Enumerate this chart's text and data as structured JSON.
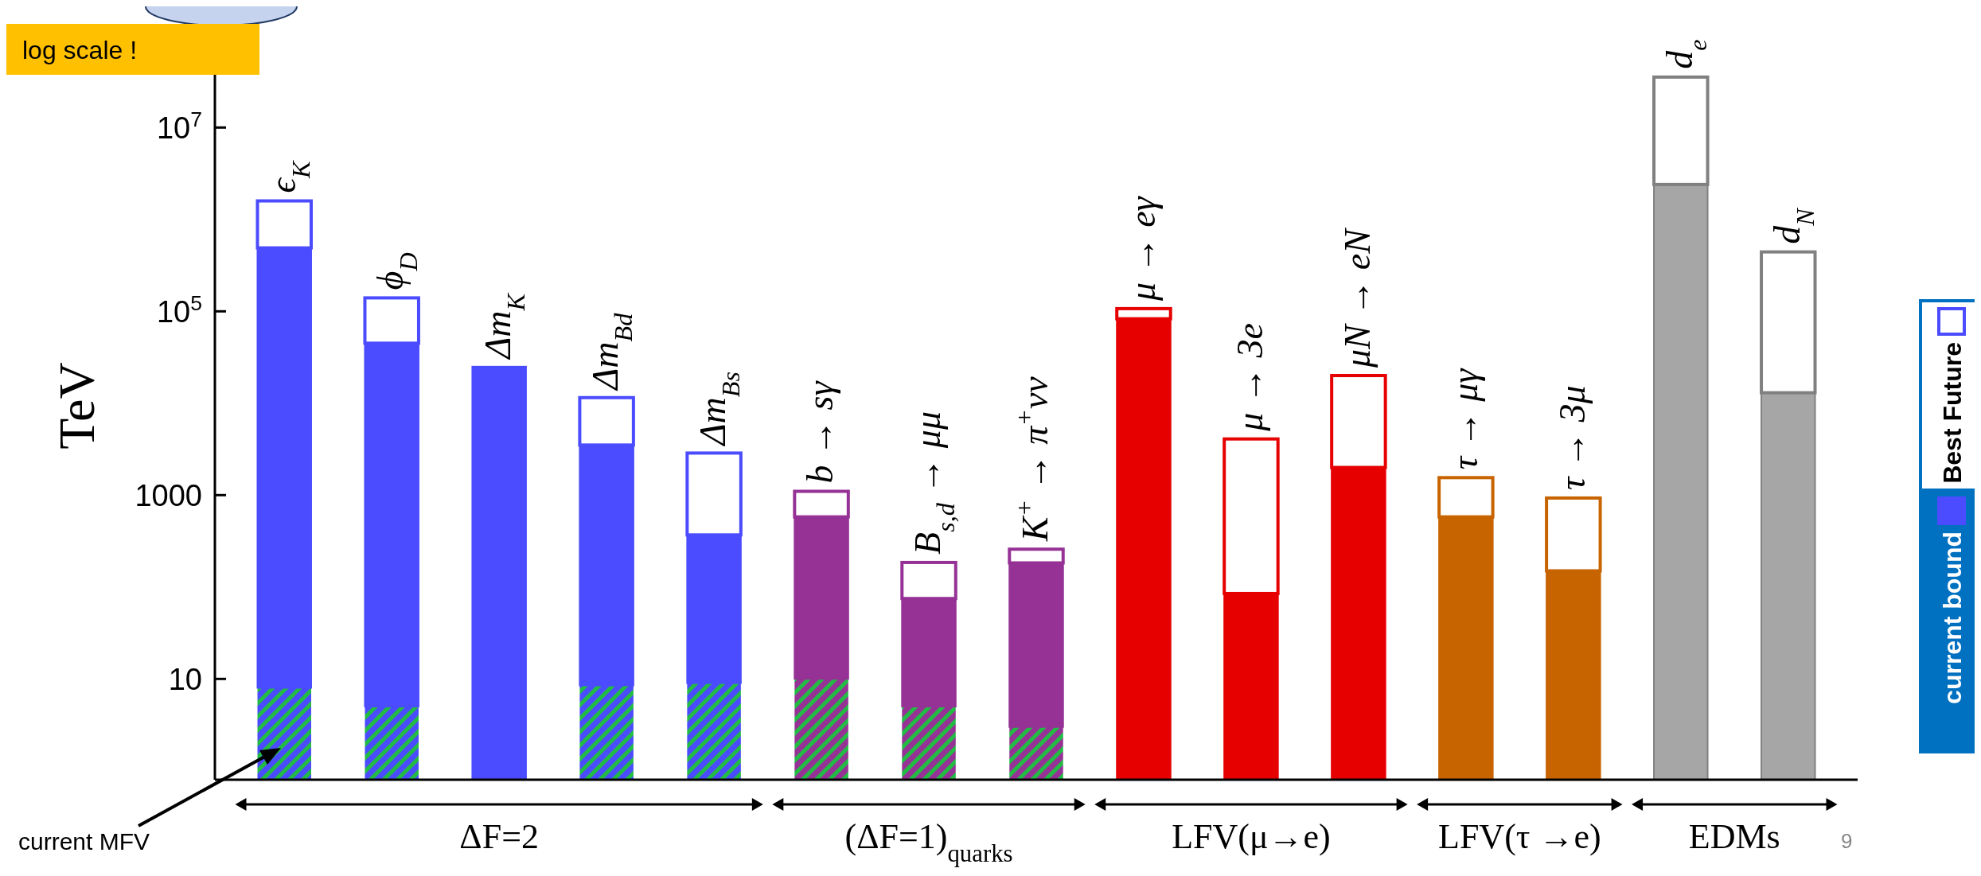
{
  "chart_data": {
    "type": "bar",
    "stacked": true,
    "log": true,
    "ylabel": "TeV",
    "categories": [
      "ϵ$_{K}$",
      "ϕ$_{D}$",
      "Δm$_{K}$",
      "Δm$_{Bd}$",
      "Δm$_{Bs}$",
      "b → sγ",
      "B$_{s,d}$ → μμ",
      "K$^{+}$ → π$^{+}$νν",
      "μ → eγ",
      "μ → 3e",
      "μN → eN",
      "τ → μγ",
      "τ → 3μ",
      "d$_{e}$",
      "d$_{N}$"
    ],
    "ylim": [
      0.8,
      110000000
    ],
    "yticks": [
      10,
      1000,
      {
        "value": 100000,
        "label": "10$^{5}$"
      },
      {
        "value": 10000000,
        "label": "10$^{7}$"
      }
    ],
    "series": [
      {
        "name": "current MFV",
        "color": "#22bb44",
        "colors": [
          "#4b4bff",
          "#4b4bff",
          "#4b4bff",
          "#4b4bff",
          "#4b4bff",
          "#963296",
          "#963296",
          "#963296",
          "#e60000",
          "#e60000",
          "#e60000",
          "#c86400",
          "#c86400",
          "#a6a6a6",
          "#a6a6a6"
        ],
        "values": [
          8,
          5,
          null,
          8.5,
          9,
          10,
          5,
          3,
          null,
          null,
          null,
          null,
          null,
          null,
          null
        ]
      },
      {
        "name": "current bound",
        "color": "#4b4bff",
        "colors": [
          "#4b4bff",
          "#4b4bff",
          "#4b4bff",
          "#4b4bff",
          "#4b4bff",
          "#963296",
          "#963296",
          "#963296",
          "#e60000",
          "#e60000",
          "#e60000",
          "#c86400",
          "#c86400",
          "#a6a6a6",
          "#a6a6a6"
        ],
        "values": [
          490000,
          45000,
          25000,
          3500,
          360,
          570,
          70,
          180,
          83000,
          85,
          2000,
          580,
          150,
          2400000,
          13000
        ]
      },
      {
        "name": "Best Future",
        "color": "#ffffff",
        "colors": [
          "#4b4bff",
          "#4b4bff",
          "#4b4bff",
          "#4b4bff",
          "#4b4bff",
          "#963296",
          "#963296",
          "#963296",
          "#e60000",
          "#e60000",
          "#e60000",
          "#c86400",
          "#c86400",
          "#808080",
          "#808080"
        ],
        "values": [
          1100000,
          95000,
          null,
          8000,
          2500,
          520,
          110,
          75,
          24000,
          4000,
          18000,
          970,
          780,
          33000000,
          430000
        ]
      }
    ],
    "legend": "right",
    "annotations": [
      "ΔF=2",
      "(ΔF=1)$_{quarks}$",
      "LFV(μ→e)",
      "LFV(τ →e)",
      "EDMs",
      "log scale !",
      "9"
    ]
  }
}
